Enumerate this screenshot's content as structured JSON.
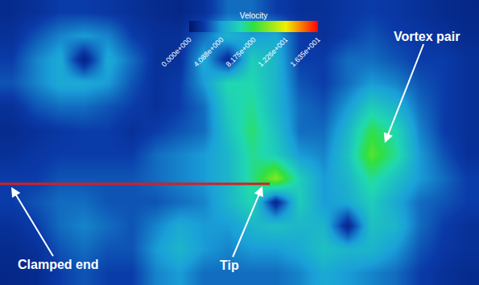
{
  "chart_data": {
    "type": "heatmap",
    "colorbar_title": "Velocity",
    "zlim": [
      0,
      16.35
    ],
    "zticks": [
      {
        "value": 0,
        "label": "0.000e+000"
      },
      {
        "value": 4.088,
        "label": "4.088e+000"
      },
      {
        "value": 8.175,
        "label": "8.175e+000"
      },
      {
        "value": 12.26,
        "label": "1.226e+001"
      },
      {
        "value": 16.35,
        "label": "1.635e+001"
      }
    ],
    "tick_labels": false,
    "annotations": [
      "Clamped end",
      "Tip",
      "Vortex pair"
    ],
    "z": [
      [
        1.2,
        1.5,
        2,
        2,
        1.8,
        1.5,
        1.2,
        1,
        1.5,
        3,
        3,
        2,
        1.5,
        1.5,
        1.8,
        2,
        1.8,
        1.5,
        1.2,
        1
      ],
      [
        1.5,
        2.5,
        3.5,
        4,
        3.5,
        2,
        1.5,
        1.5,
        3,
        5,
        4,
        4.5,
        2,
        1.5,
        2,
        2.5,
        2,
        1.8,
        1.5,
        1.2
      ],
      [
        2,
        3.5,
        4.5,
        0.8,
        4.5,
        3,
        1.5,
        1.5,
        4.5,
        1.2,
        6,
        5,
        2,
        2,
        3,
        3,
        2.5,
        2,
        2,
        1.5
      ],
      [
        2.5,
        3.5,
        4.5,
        4.5,
        4,
        2.5,
        1.5,
        2,
        4,
        6.5,
        6.5,
        5,
        2.5,
        2,
        3,
        4,
        3.5,
        2.5,
        2,
        1.5
      ],
      [
        1.5,
        2.5,
        3,
        3,
        2.5,
        2,
        1.5,
        2,
        3,
        6,
        7,
        5,
        3,
        2.5,
        4,
        6,
        5,
        3,
        2,
        1.5
      ],
      [
        1.2,
        1.5,
        1.8,
        2,
        2,
        1.5,
        2,
        2.5,
        3,
        5.5,
        7.5,
        5.5,
        3,
        3,
        5,
        8,
        6.5,
        3.5,
        2,
        1.5
      ],
      [
        1.5,
        1.8,
        2,
        2,
        2,
        2,
        3,
        3.5,
        4,
        5,
        7,
        6,
        4,
        3.5,
        5.5,
        9,
        7,
        4,
        2.5,
        1.5
      ],
      [
        2,
        2,
        2.5,
        2.5,
        2.5,
        2.5,
        3,
        3.5,
        4,
        5,
        7,
        10,
        6,
        4,
        5,
        7,
        5.5,
        4,
        3,
        2
      ],
      [
        2,
        2.5,
        3,
        3,
        2.5,
        2.5,
        2.5,
        3,
        3.5,
        5,
        6.5,
        1,
        6,
        4,
        4.5,
        6,
        4.5,
        3,
        2.5,
        2
      ],
      [
        1.5,
        2,
        3,
        3.5,
        3,
        2.5,
        3.5,
        4.5,
        4,
        4,
        5,
        5.5,
        5,
        5,
        1,
        5.5,
        5,
        3,
        2,
        1.5
      ],
      [
        1.2,
        1.5,
        2.5,
        3,
        2.5,
        2.5,
        4,
        5,
        4,
        3.5,
        4,
        4,
        4.5,
        5.5,
        5,
        5,
        4,
        2.5,
        1.8,
        1.5
      ],
      [
        1,
        1.2,
        2,
        2.5,
        2,
        2,
        3.5,
        4,
        3,
        3,
        3,
        3,
        3.5,
        4.5,
        4,
        3.5,
        3,
        2,
        1.5,
        1.2
      ]
    ]
  }
}
